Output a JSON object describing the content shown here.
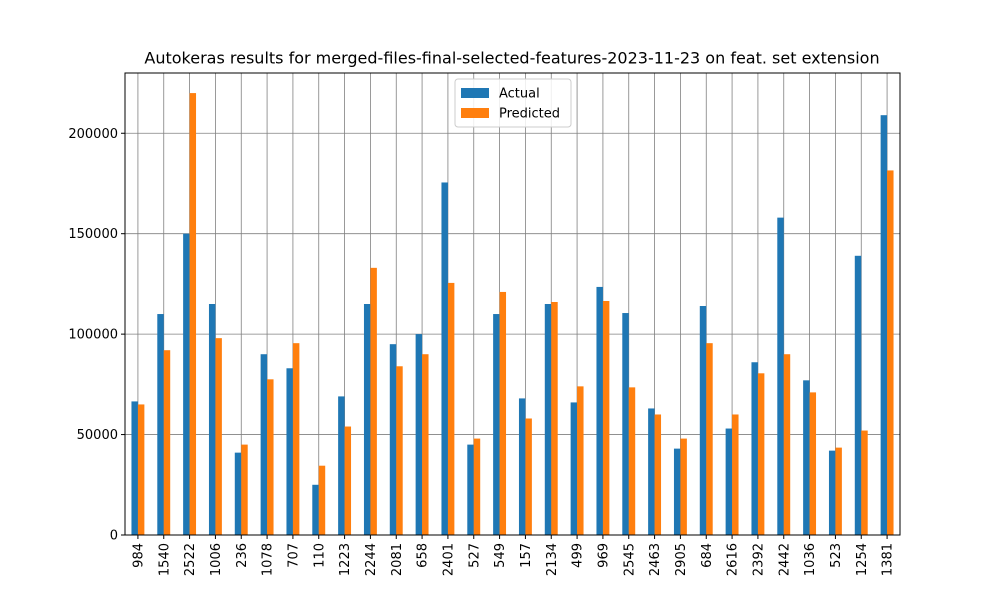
{
  "chart_data": {
    "type": "bar",
    "title": "Autokeras results for merged-files-final-selected-features-2023-11-23 on feat. set extension",
    "xlabel": "",
    "ylabel": "",
    "categories": [
      "984",
      "1540",
      "2522",
      "1006",
      "236",
      "1078",
      "707",
      "110",
      "1223",
      "2244",
      "2081",
      "658",
      "2401",
      "527",
      "549",
      "157",
      "2134",
      "499",
      "969",
      "2545",
      "2463",
      "2905",
      "684",
      "2616",
      "2392",
      "2442",
      "1036",
      "523",
      "1254",
      "1381"
    ],
    "series": [
      {
        "name": "Actual",
        "color": "#1f77b4",
        "values": [
          66500,
          110000,
          150000,
          115000,
          41000,
          90000,
          83000,
          25000,
          69000,
          115000,
          95000,
          100000,
          175500,
          45000,
          110000,
          68000,
          115000,
          66000,
          123500,
          110500,
          63000,
          43000,
          114000,
          53000,
          86000,
          158000,
          77000,
          42000,
          139000,
          209000
        ]
      },
      {
        "name": "Predicted",
        "color": "#ff7f0e",
        "values": [
          65000,
          92000,
          220000,
          98000,
          45000,
          77500,
          95500,
          34500,
          54000,
          133000,
          84000,
          90000,
          125500,
          48000,
          121000,
          58000,
          116000,
          74000,
          116500,
          73500,
          60000,
          48000,
          95500,
          60000,
          80500,
          90000,
          71000,
          43500,
          52000,
          181500
        ]
      }
    ],
    "y_ticks": [
      0,
      50000,
      100000,
      150000,
      200000
    ],
    "ylim": [
      0,
      230000
    ],
    "grid": true,
    "legend_position": "top-center"
  }
}
